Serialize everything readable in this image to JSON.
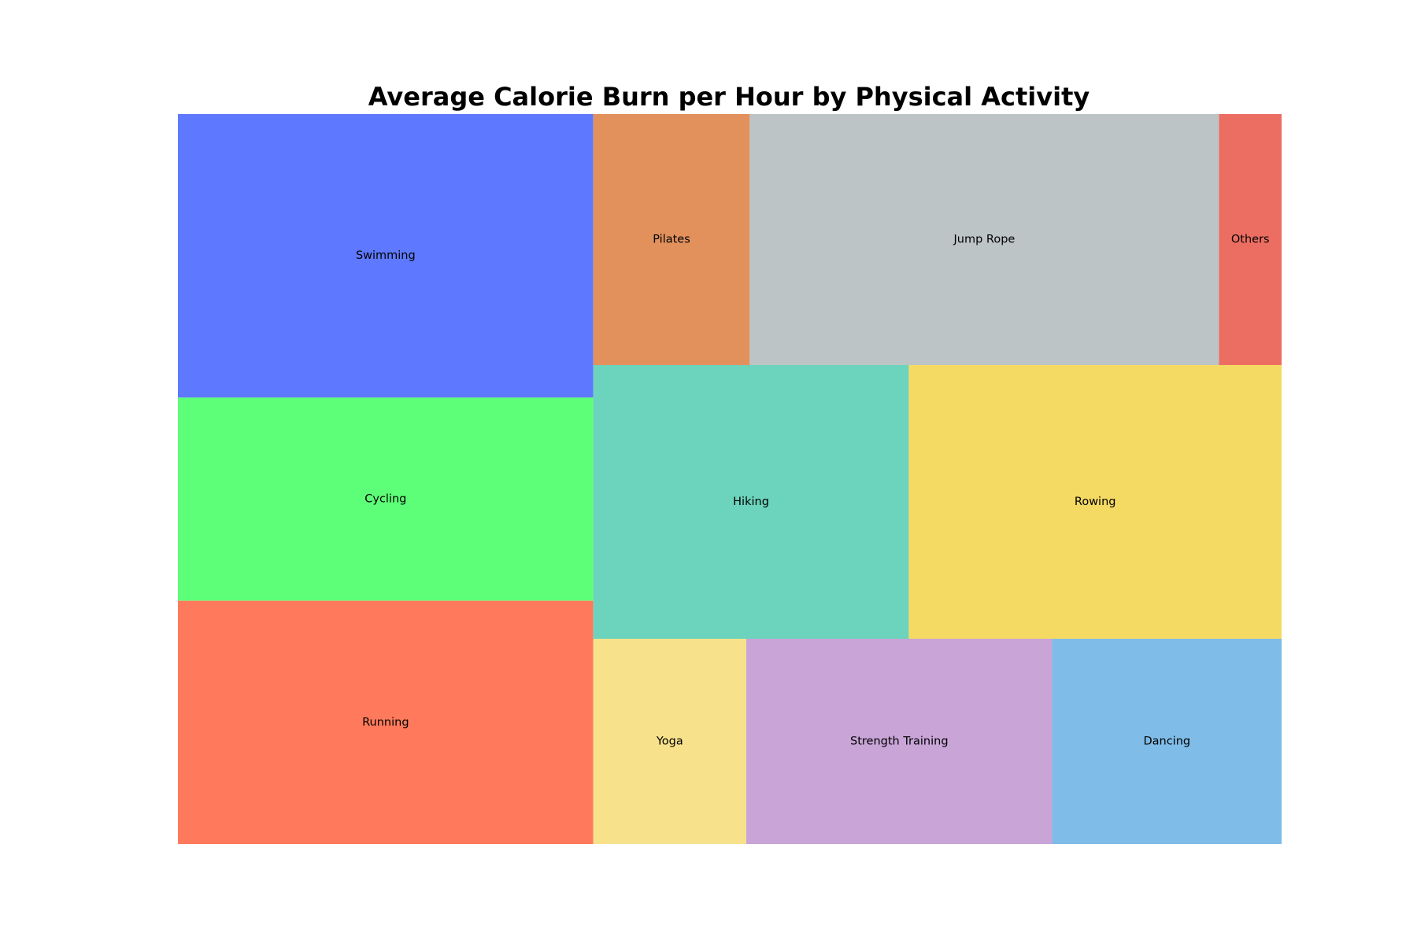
{
  "chart_data": {
    "type": "treemap",
    "title": "Average Calorie Burn per Hour by Physical Activity",
    "items": [
      {
        "label": "Swimming",
        "value": 600,
        "color": "#5e79ff"
      },
      {
        "label": "Cycling",
        "value": 430,
        "color": "#5dff78"
      },
      {
        "label": "Running",
        "value": 515,
        "color": "#ff7a5c"
      },
      {
        "label": "Pilates",
        "value": 200,
        "color": "#e2915d"
      },
      {
        "label": "Jump Rope",
        "value": 600,
        "color": "#bdc4c5"
      },
      {
        "label": "Others",
        "value": 80,
        "color": "#ec6e62"
      },
      {
        "label": "Hiking",
        "value": 440,
        "color": "#6cd3bd"
      },
      {
        "label": "Rowing",
        "value": 520,
        "color": "#f4d963"
      },
      {
        "label": "Yoga",
        "value": 160,
        "color": "#f7e28b"
      },
      {
        "label": "Strength Training",
        "value": 320,
        "color": "#c8a4d7"
      },
      {
        "label": "Dancing",
        "value": 240,
        "color": "#7fbce7"
      }
    ]
  }
}
